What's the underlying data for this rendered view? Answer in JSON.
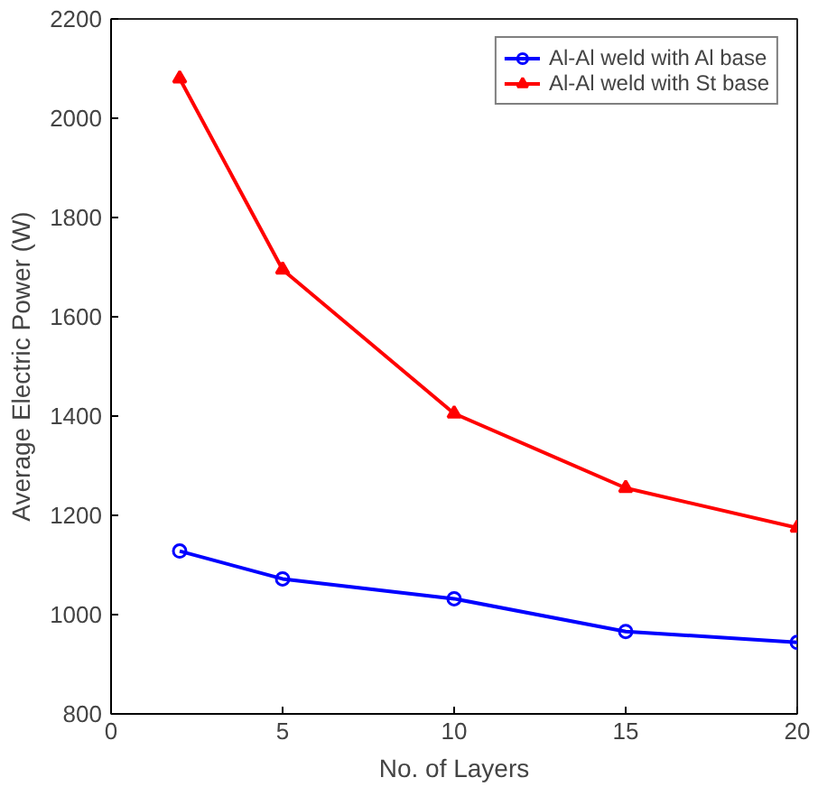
{
  "chart_data": {
    "type": "line",
    "xlabel": "No. of Layers",
    "ylabel": "Average Electric Power (W)",
    "x": [
      2,
      5,
      10,
      15,
      20
    ],
    "series": [
      {
        "name": "Al-Al weld with Al base",
        "color": "#0000ff",
        "marker": "circle",
        "values": [
          1128,
          1072,
          1032,
          966,
          944
        ]
      },
      {
        "name": "Al-Al weld with St base",
        "color": "#ff0000",
        "marker": "triangle",
        "values": [
          2080,
          1695,
          1405,
          1255,
          1175
        ]
      }
    ],
    "xlim": [
      0,
      20
    ],
    "xticks": [
      0,
      5,
      10,
      15,
      20
    ],
    "ylim": [
      800,
      2200
    ],
    "yticks": [
      800,
      1000,
      1200,
      1400,
      1600,
      1800,
      2000,
      2200
    ],
    "legend": "top right",
    "grid": false,
    "line_style": "solid"
  }
}
